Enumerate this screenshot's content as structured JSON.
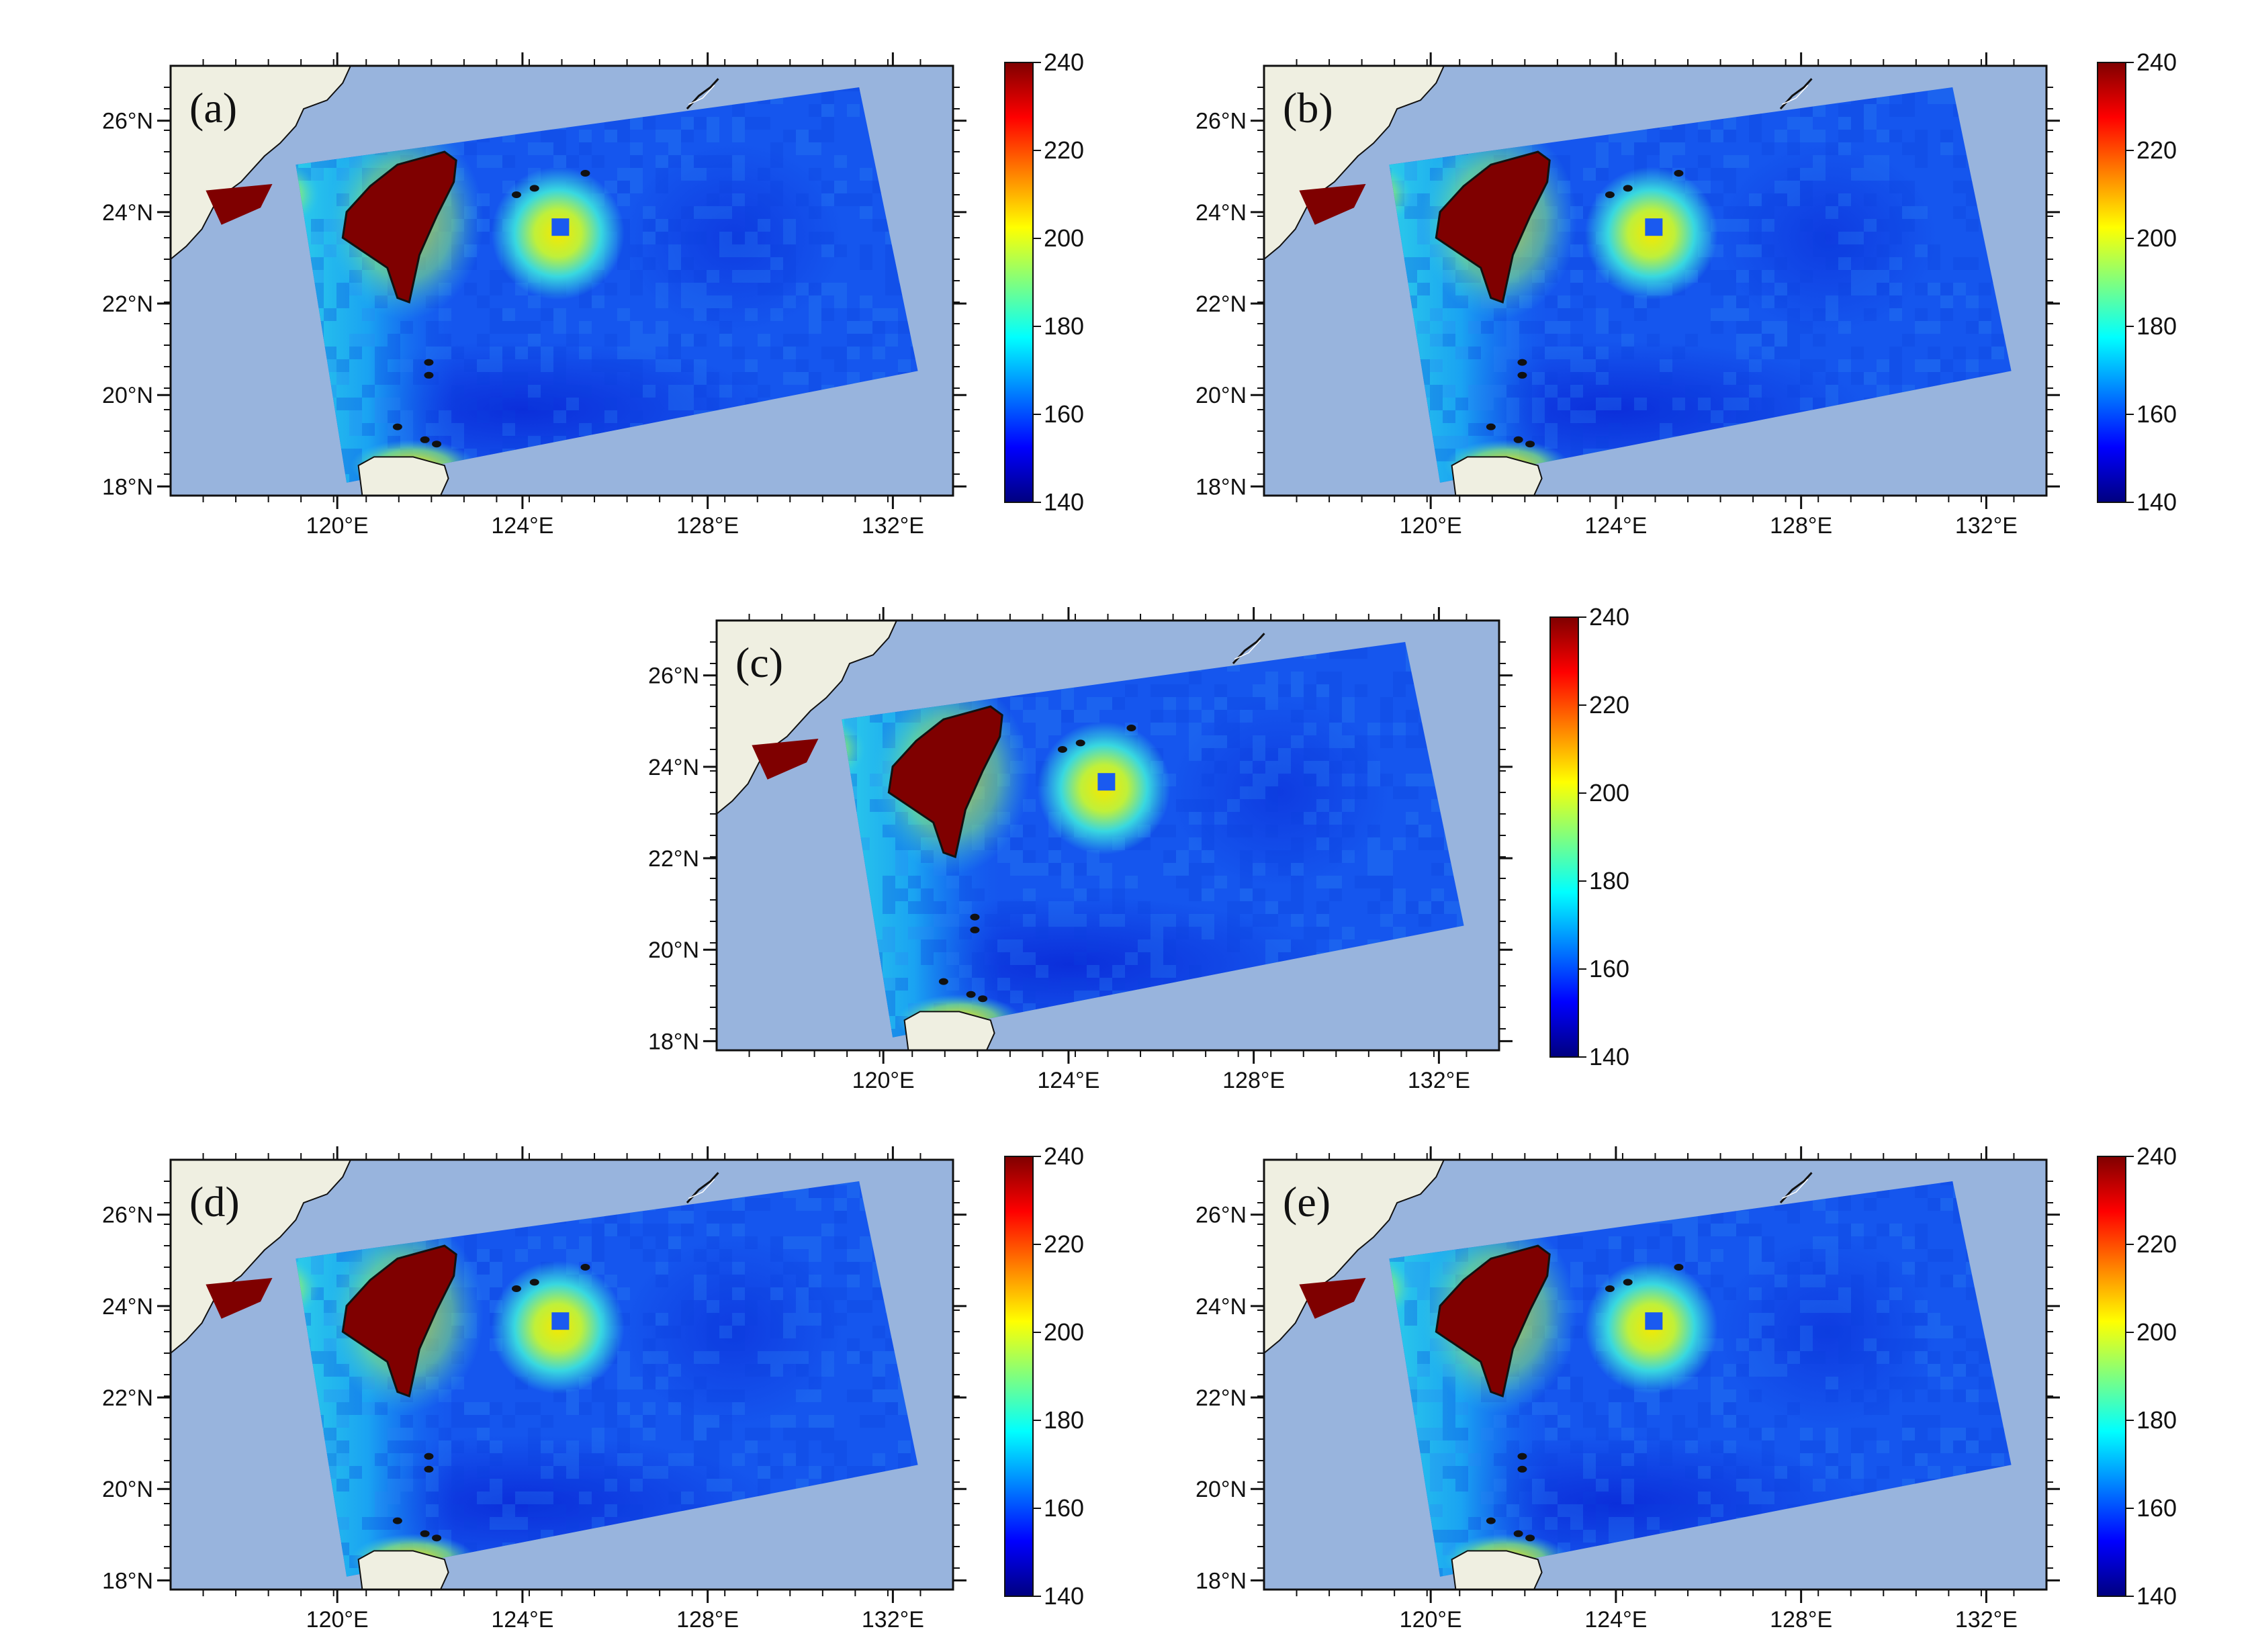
{
  "figure": {
    "colorbar": {
      "min": 140,
      "max": 240,
      "ticks": [
        "240",
        "220",
        "200",
        "180",
        "160",
        "140"
      ]
    },
    "x_ticks": [
      "120°E",
      "124°E",
      "128°E",
      "132°E"
    ],
    "y_ticks": [
      "26°N",
      "24°N",
      "22°N",
      "20°N",
      "18°N"
    ],
    "colors": {
      "ocean": "#98b4dd",
      "land": "#efefe1",
      "island_hot": "#7f0000"
    }
  },
  "panels": [
    {
      "id": "a",
      "label": "(a)"
    },
    {
      "id": "b",
      "label": "(b)"
    },
    {
      "id": "c",
      "label": "(c)"
    },
    {
      "id": "d",
      "label": "(d)"
    },
    {
      "id": "e",
      "label": "(e)"
    }
  ]
}
